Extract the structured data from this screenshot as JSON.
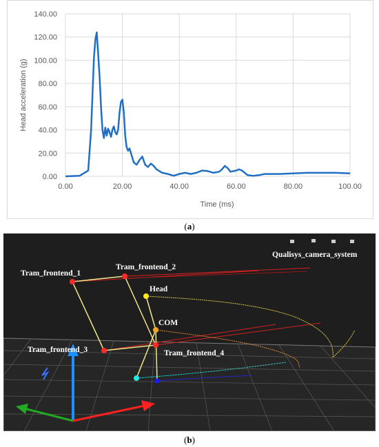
{
  "chart_data": {
    "type": "line",
    "xlabel": "Time (ms)",
    "ylabel": "Head acceleration (g)",
    "xlim": [
      0,
      100
    ],
    "ylim": [
      0,
      140
    ],
    "x_ticks": [
      "0.00",
      "20.00",
      "40.00",
      "60.00",
      "80.00",
      "100.00"
    ],
    "y_ticks": [
      "0.00",
      "20.00",
      "40.00",
      "60.00",
      "80.00",
      "100.00",
      "120.00",
      "140.00"
    ],
    "grid": true,
    "series": [
      {
        "color": "#1f6fc5",
        "x": [
          0,
          5,
          8,
          9,
          9.5,
          10,
          10.5,
          11,
          11.5,
          12,
          12.5,
          13,
          13.5,
          14,
          14.5,
          15,
          15.5,
          16,
          16.5,
          17,
          17.5,
          18,
          18.5,
          19,
          19.5,
          20,
          20.5,
          21,
          21.5,
          22,
          22.5,
          23,
          24,
          25,
          26,
          27,
          28,
          29,
          30,
          31,
          32,
          34,
          36,
          38,
          40,
          42,
          44,
          46,
          48,
          50,
          52,
          54,
          55,
          56,
          57,
          58,
          60,
          61,
          62,
          63,
          64,
          66,
          68,
          70,
          75,
          80,
          85,
          90,
          95,
          100
        ],
        "y": [
          0,
          0.5,
          5,
          40,
          70,
          102,
          118,
          124,
          105,
          85,
          60,
          40,
          33,
          42,
          35,
          41,
          38,
          34,
          40,
          43,
          38,
          36,
          40,
          55,
          64,
          66,
          55,
          35,
          25,
          22,
          24,
          20,
          12,
          10,
          14,
          17,
          10,
          8,
          11,
          9,
          6,
          3,
          2,
          0.5,
          2,
          3,
          2,
          3,
          5,
          4.5,
          3,
          4,
          6,
          9,
          7,
          4,
          5,
          6,
          5,
          3,
          1,
          0.5,
          1,
          2,
          2,
          2.5,
          3,
          3,
          3,
          2.5
        ]
      }
    ]
  },
  "caption_a": "(a)",
  "caption_b": "(b)",
  "scene": {
    "label_qualisys": "Qualisys_camera_system",
    "label_frontend_1": "Tram_frontend_1",
    "label_frontend_2": "Tram_frontend_2",
    "label_frontend_3": "Tram_frontend_3",
    "label_frontend_4": "Tram_frontend_4",
    "label_head": "Head",
    "label_com": "COM",
    "colors": {
      "background": "#1e1e1e",
      "frontend_marker": "#ff2a2a",
      "head_marker": "#ffe81a",
      "com_marker": "#f5a623",
      "cyan_marker": "#23e8e8",
      "blue_marker": "#1a1aff",
      "link_line": "#f0e68c",
      "axis_x": "#ff2020",
      "axis_y": "#1e8fff",
      "axis_z": "#22aa22"
    }
  }
}
